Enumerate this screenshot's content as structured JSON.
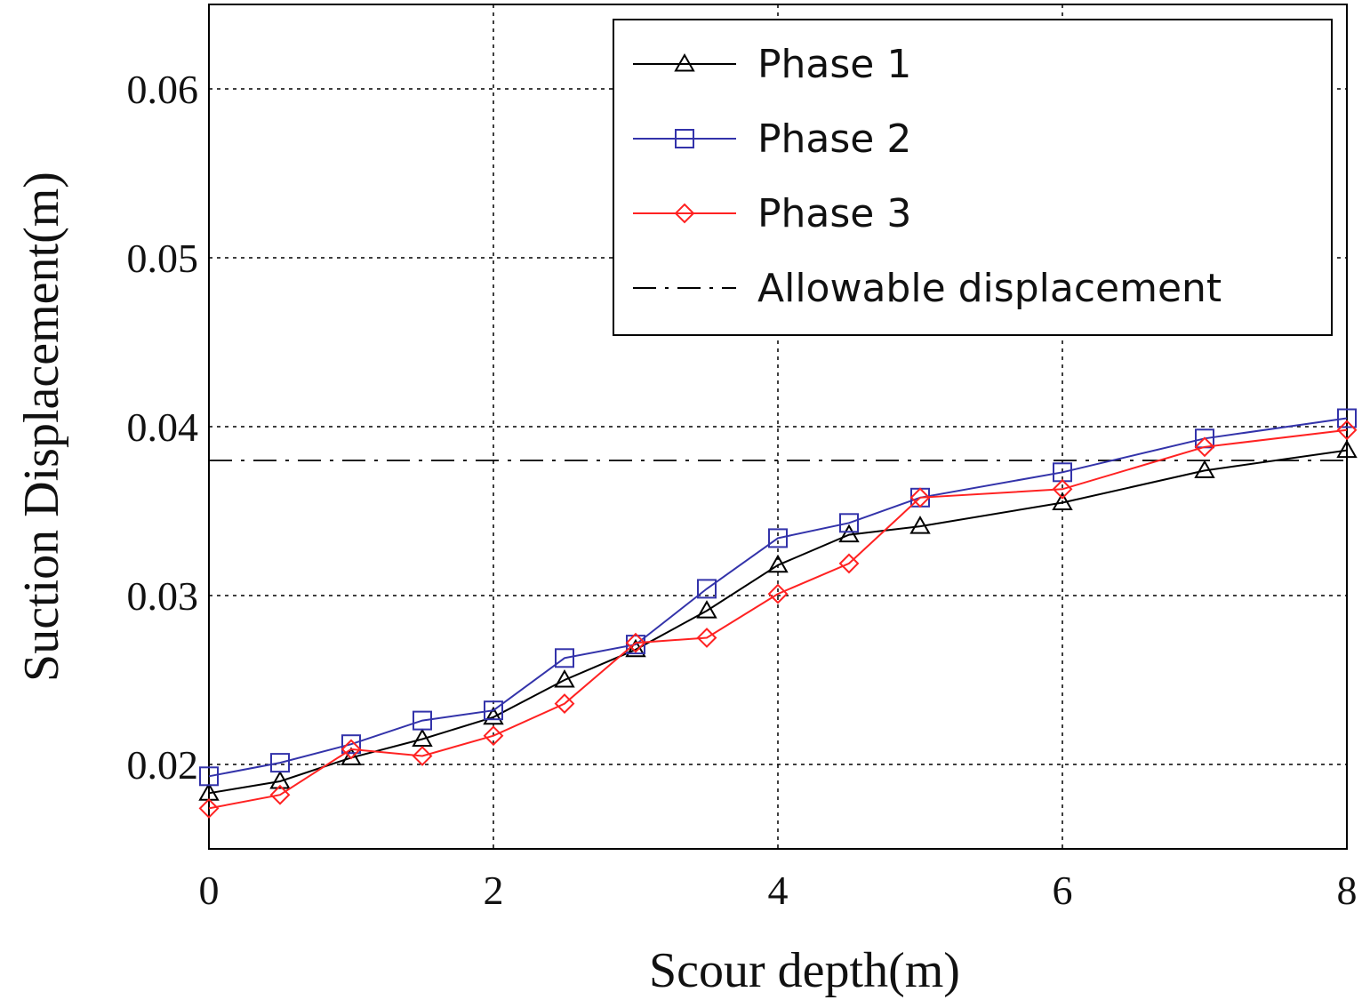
{
  "chart_data": {
    "type": "line",
    "xlabel": "Scour depth(m)",
    "ylabel": "Suction Displacement(m)",
    "xlim": [
      0,
      8
    ],
    "ylim": [
      0.015,
      0.065
    ],
    "xticks": [
      0,
      2,
      4,
      6,
      8
    ],
    "yticks": [
      0.02,
      0.03,
      0.04,
      0.05,
      0.06
    ],
    "xtick_labels": [
      "0",
      "2",
      "4",
      "6",
      "8"
    ],
    "ytick_labels": [
      "0.02",
      "0.03",
      "0.04",
      "0.05",
      "0.06"
    ],
    "grid": true,
    "legend_position": "top-right",
    "x": [
      0,
      0.5,
      1,
      1.5,
      2,
      2.5,
      3,
      3.5,
      4,
      4.5,
      5,
      6,
      7,
      8
    ],
    "series": [
      {
        "name": "Phase 1",
        "color": "#000000",
        "marker": "triangle",
        "values": [
          0.0183,
          0.019,
          0.0204,
          0.0215,
          0.0228,
          0.025,
          0.0268,
          0.0291,
          0.0318,
          0.0336,
          0.0341,
          0.0355,
          0.0374,
          0.0386
        ]
      },
      {
        "name": "Phase 2",
        "color": "#3333aa",
        "marker": "square",
        "values": [
          0.0193,
          0.0201,
          0.0212,
          0.0226,
          0.0232,
          0.0263,
          0.0271,
          0.0304,
          0.0334,
          0.0343,
          0.0358,
          0.0373,
          0.0393,
          0.0405
        ]
      },
      {
        "name": "Phase 3",
        "color": "#ff2222",
        "marker": "diamond",
        "values": [
          0.0174,
          0.0182,
          0.0209,
          0.0205,
          0.0217,
          0.0236,
          0.0272,
          0.0275,
          0.0301,
          0.0319,
          0.0358,
          0.0363,
          0.0388,
          0.0398
        ]
      }
    ],
    "reference_line": {
      "name": "Allowable displacement",
      "y": 0.038,
      "color": "#000000",
      "style": "dash-dot"
    }
  }
}
